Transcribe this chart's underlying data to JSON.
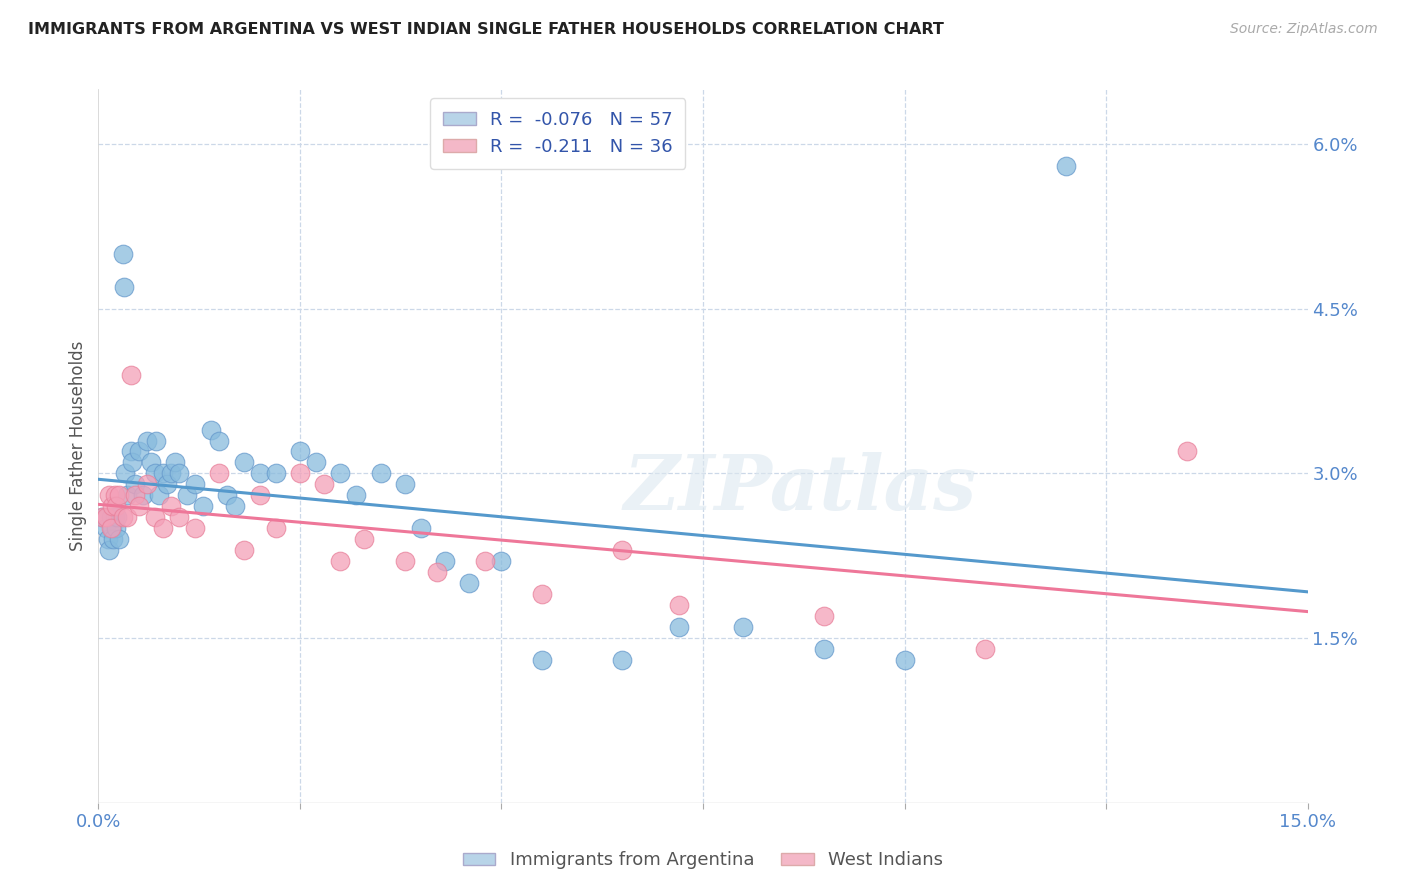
{
  "title": "IMMIGRANTS FROM ARGENTINA VS WEST INDIAN SINGLE FATHER HOUSEHOLDS CORRELATION CHART",
  "source": "Source: ZipAtlas.com",
  "ylabel": "Single Father Households",
  "legend_label1": "Immigrants from Argentina",
  "legend_label2": "West Indians",
  "blue_color": "#88bbdd",
  "pink_color": "#f4a0b8",
  "blue_edge": "#6699cc",
  "pink_edge": "#e8809a",
  "line_blue": "#5599cc",
  "line_pink": "#ee7799",
  "watermark": "ZIPatlas",
  "xlim": [
    0.0,
    0.15
  ],
  "ylim": [
    0.0,
    0.065
  ],
  "background_color": "#ffffff",
  "grid_color": "#ccd8e8",
  "title_color": "#222222",
  "axis_label_color": "#5588cc",
  "right_ytick_vals": [
    0.015,
    0.03,
    0.045,
    0.06
  ],
  "right_ytick_labels": [
    "1.5%",
    "3.0%",
    "4.5%",
    "6.0%"
  ],
  "xtick_vals": [
    0.0,
    0.025,
    0.05,
    0.075,
    0.1,
    0.125,
    0.15
  ],
  "xtick_labels": [
    "0.0%",
    "",
    "",
    "",
    "",
    "",
    "15.0%"
  ],
  "argentina_x": [
    0.0005,
    0.001,
    0.0012,
    0.0013,
    0.0015,
    0.0017,
    0.0018,
    0.002,
    0.0022,
    0.0023,
    0.0025,
    0.003,
    0.0032,
    0.0033,
    0.0035,
    0.004,
    0.0042,
    0.0045,
    0.005,
    0.0055,
    0.006,
    0.0065,
    0.007,
    0.0072,
    0.0075,
    0.008,
    0.0085,
    0.009,
    0.0095,
    0.01,
    0.011,
    0.012,
    0.013,
    0.014,
    0.015,
    0.016,
    0.017,
    0.018,
    0.02,
    0.022,
    0.025,
    0.027,
    0.03,
    0.032,
    0.035,
    0.038,
    0.04,
    0.043,
    0.046,
    0.05,
    0.055,
    0.065,
    0.072,
    0.08,
    0.09,
    0.1,
    0.12
  ],
  "argentina_y": [
    0.026,
    0.025,
    0.024,
    0.023,
    0.026,
    0.025,
    0.024,
    0.026,
    0.025,
    0.026,
    0.024,
    0.05,
    0.047,
    0.03,
    0.028,
    0.032,
    0.031,
    0.029,
    0.032,
    0.028,
    0.033,
    0.031,
    0.03,
    0.033,
    0.028,
    0.03,
    0.029,
    0.03,
    0.031,
    0.03,
    0.028,
    0.029,
    0.027,
    0.034,
    0.033,
    0.028,
    0.027,
    0.031,
    0.03,
    0.03,
    0.032,
    0.031,
    0.03,
    0.028,
    0.03,
    0.029,
    0.025,
    0.022,
    0.02,
    0.022,
    0.013,
    0.013,
    0.016,
    0.016,
    0.014,
    0.013,
    0.058
  ],
  "west_indian_x": [
    0.0005,
    0.001,
    0.0013,
    0.0015,
    0.0017,
    0.002,
    0.0022,
    0.0025,
    0.003,
    0.0035,
    0.004,
    0.0045,
    0.005,
    0.006,
    0.007,
    0.008,
    0.009,
    0.01,
    0.012,
    0.015,
    0.018,
    0.02,
    0.022,
    0.025,
    0.028,
    0.03,
    0.033,
    0.038,
    0.042,
    0.048,
    0.055,
    0.065,
    0.072,
    0.09,
    0.11,
    0.135
  ],
  "west_indian_y": [
    0.026,
    0.026,
    0.028,
    0.025,
    0.027,
    0.028,
    0.027,
    0.028,
    0.026,
    0.026,
    0.039,
    0.028,
    0.027,
    0.029,
    0.026,
    0.025,
    0.027,
    0.026,
    0.025,
    0.03,
    0.023,
    0.028,
    0.025,
    0.03,
    0.029,
    0.022,
    0.024,
    0.022,
    0.021,
    0.022,
    0.019,
    0.023,
    0.018,
    0.017,
    0.014,
    0.032
  ]
}
